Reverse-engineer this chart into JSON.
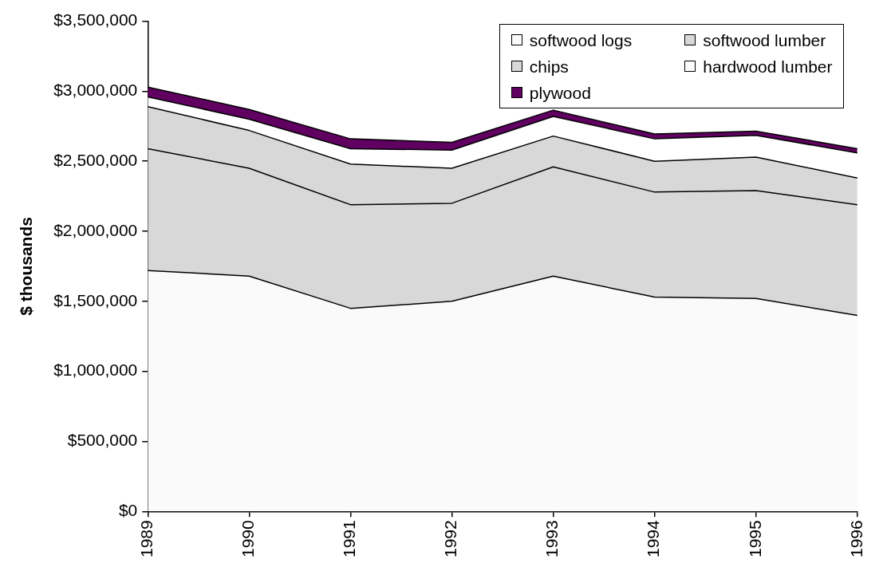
{
  "chart_data": {
    "type": "area",
    "stacked": true,
    "ylabel": "$ thousands",
    "categories": [
      "1989",
      "1990",
      "1991",
      "1992",
      "1993",
      "1994",
      "1995",
      "1996"
    ],
    "series": [
      {
        "name": "softwood logs",
        "color": "#fafafa",
        "values": [
          1720000,
          1680000,
          1450000,
          1500000,
          1680000,
          1530000,
          1520000,
          1400000
        ]
      },
      {
        "name": "softwood lumber",
        "color": "#d8d8d8",
        "values": [
          870000,
          770000,
          740000,
          700000,
          780000,
          750000,
          770000,
          790000
        ]
      },
      {
        "name": "chips",
        "color": "#d8d8d8",
        "values": [
          300000,
          270000,
          290000,
          250000,
          220000,
          220000,
          240000,
          190000
        ]
      },
      {
        "name": "hardwood lumber",
        "color": "#ffffff",
        "values": [
          70000,
          80000,
          110000,
          130000,
          140000,
          160000,
          155000,
          180000
        ]
      },
      {
        "name": "plywood",
        "color": "#600060",
        "values": [
          70000,
          70000,
          70000,
          55000,
          45000,
          35000,
          30000,
          30000
        ]
      }
    ],
    "ylim": [
      0,
      3500000
    ],
    "yticks": [
      {
        "value": 0,
        "label": "$0"
      },
      {
        "value": 500000,
        "label": "$500,000"
      },
      {
        "value": 1000000,
        "label": "$1,000,000"
      },
      {
        "value": 1500000,
        "label": "$1,500,000"
      },
      {
        "value": 2000000,
        "label": "$2,000,000"
      },
      {
        "value": 2500000,
        "label": "$2,500,000"
      },
      {
        "value": 3000000,
        "label": "$3,000,000"
      },
      {
        "value": 3500000,
        "label": "$3,500,000"
      }
    ],
    "grid": false,
    "legend": "top right"
  }
}
